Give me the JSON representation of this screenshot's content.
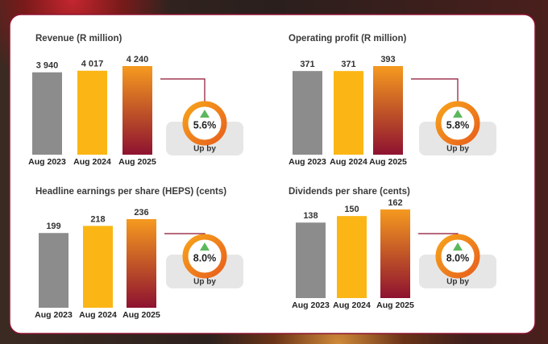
{
  "chart_data": [
    {
      "type": "bar",
      "title": "Revenue (R million)",
      "categories": [
        "Aug 2023",
        "Aug 2024",
        "Aug 2025"
      ],
      "values": [
        3940,
        4017,
        4240
      ],
      "value_labels": [
        "3 940",
        "4 017",
        "4 240"
      ],
      "colors": [
        "#8c8c8c",
        "#fbb615",
        "#f59a1f"
      ],
      "accent": "#8e1230",
      "badge": {
        "change": "5.6%",
        "caption": "Up by"
      }
    },
    {
      "type": "bar",
      "title": "Operating profit (R million)",
      "categories": [
        "Aug 2023",
        "Aug 2024",
        "Aug 2025"
      ],
      "values": [
        371,
        371,
        393
      ],
      "colors": [
        "#8c8c8c",
        "#fbb615",
        "#f59a1f"
      ],
      "accent": "#8e1230",
      "badge": {
        "change": "5.8%",
        "caption": "Up by"
      }
    },
    {
      "type": "bar",
      "title": "Headline earnings per share (HEPS) (cents)",
      "categories": [
        "Aug 2023",
        "Aug 2024",
        "Aug 2025"
      ],
      "values": [
        199,
        218,
        236
      ],
      "colors": [
        "#8c8c8c",
        "#fbb615",
        "#f59a1f"
      ],
      "accent": "#8e1230",
      "badge": {
        "change": "8.0%",
        "caption": "Up by"
      }
    },
    {
      "type": "bar",
      "title": "Dividends per share (cents)",
      "categories": [
        "Aug 2023",
        "Aug 2024",
        "Aug 2025"
      ],
      "values": [
        138,
        150,
        162
      ],
      "colors": [
        "#8c8c8c",
        "#fbb615",
        "#f59a1f"
      ],
      "accent": "#8e1230",
      "badge": {
        "change": "8.0%",
        "caption": "Up by"
      }
    }
  ]
}
